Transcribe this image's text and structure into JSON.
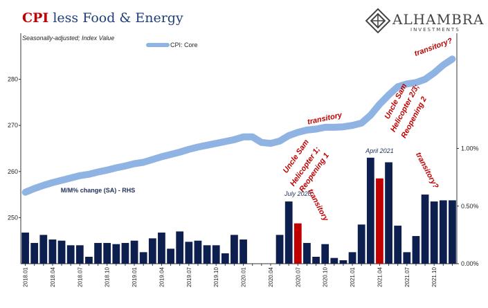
{
  "header": {
    "title_red": "CPI",
    "title_rest": " less Food & Energy",
    "subtitle": "Seasonally-adjusted; Index Value"
  },
  "logo": {
    "word": "ALHAMBRA",
    "sub": "INVESTMENTS",
    "icon": "diamond-knot-icon"
  },
  "chart_data": {
    "type": "bar+line",
    "x": [
      "2018.01",
      "2018.02",
      "2018.03",
      "2018.04",
      "2018.05",
      "2018.06",
      "2018.07",
      "2018.08",
      "2018.09",
      "2018.10",
      "2018.11",
      "2018.12",
      "2019.01",
      "2019.02",
      "2019.03",
      "2019.04",
      "2019.05",
      "2019.06",
      "2019.07",
      "2019.08",
      "2019.09",
      "2019.10",
      "2019.11",
      "2019.12",
      "2020.01",
      "2020.02",
      "2020.03",
      "2020.04",
      "2020.05",
      "2020.06",
      "2020.07",
      "2020.08",
      "2020.09",
      "2020.10",
      "2020.11",
      "2020.12",
      "2021.01",
      "2021.02",
      "2021.03",
      "2021.04",
      "2021.05",
      "2021.06",
      "2021.07",
      "2021.08",
      "2021.09",
      "2021.10",
      "2021.11",
      "2021.12"
    ],
    "x_tick_labels": [
      "2018.01",
      "2018.04",
      "2018.07",
      "2018.10",
      "2019.01",
      "2019.04",
      "2019.07",
      "2019.10",
      "2020.01",
      "2020.04",
      "2020.07",
      "2020.10",
      "2021.01",
      "2021.04",
      "2021.07",
      "2021.10"
    ],
    "line_series": {
      "name": "CPI: Core",
      "axis": "left",
      "color": "#8fb4e3",
      "values": [
        255.5,
        256.3,
        257.0,
        257.6,
        258.1,
        258.6,
        259.1,
        259.4,
        259.9,
        260.3,
        260.8,
        261.2,
        261.7,
        262.0,
        262.6,
        263.2,
        263.7,
        264.2,
        264.8,
        265.3,
        265.7,
        266.1,
        266.5,
        266.9,
        267.5,
        267.5,
        266.3,
        266.1,
        266.6,
        267.8,
        268.5,
        269.0,
        269.2,
        269.6,
        269.6,
        269.7,
        270.0,
        270.5,
        272.2,
        274.6,
        276.6,
        278.4,
        279.0,
        279.3,
        280.0,
        281.4,
        283.1,
        284.4
      ],
      "ylim": [
        240,
        290
      ],
      "ticks": [
        250,
        260,
        270,
        280
      ]
    },
    "bar_series": {
      "name": "M/M% change (SA) - RHS",
      "axis": "right",
      "color": "#0d1f4f",
      "highlight_color": "#c00000",
      "highlight_months": [
        "2020.07",
        "2021.04"
      ],
      "values": [
        0.27,
        0.18,
        0.25,
        0.21,
        0.2,
        0.16,
        0.16,
        0.06,
        0.18,
        0.18,
        0.17,
        0.18,
        0.2,
        0.1,
        0.22,
        0.27,
        0.13,
        0.28,
        0.19,
        0.2,
        0.16,
        0.16,
        0.09,
        0.25,
        0.21,
        0.0,
        0.0,
        0.0,
        0.25,
        0.54,
        0.35,
        0.18,
        0.06,
        0.17,
        0.05,
        0.03,
        0.1,
        0.34,
        0.92,
        0.74,
        0.88,
        0.33,
        0.1,
        0.24,
        0.6,
        0.54,
        0.55,
        0.55
      ],
      "ylim": [
        0,
        2.0
      ],
      "ticks": [
        "0.00%",
        "0.50%",
        "1.00%"
      ]
    },
    "annotations": [
      {
        "text": "transitory?",
        "style": "red",
        "x": "2021.10",
        "y": 286.5,
        "rotate": -20
      },
      {
        "text": "transitory",
        "style": "red",
        "x": "2020.10",
        "y": 271.0,
        "rotate": -12
      },
      {
        "text": "Uncle Sam",
        "style": "red",
        "x": "2021.06",
        "y": 275.0,
        "rotate": -62
      },
      {
        "text": "Helicopter 2/3;",
        "style": "red",
        "x": "2021.07",
        "y": 273.5,
        "rotate": -62
      },
      {
        "text": "Reopening 2",
        "style": "red",
        "x": "2021.08",
        "y": 271.5,
        "rotate": -62
      },
      {
        "text": "Uncle Sam",
        "style": "red",
        "x": "2020.07",
        "y": 263.0,
        "rotate": -55
      },
      {
        "text": "Helicopter 1;",
        "style": "red",
        "x": "2020.08",
        "y": 260.8,
        "rotate": -55
      },
      {
        "text": "Reopening 1",
        "style": "red",
        "x": "2020.09",
        "y": 259.5,
        "rotate": -55
      },
      {
        "text": "transitory?",
        "style": "red",
        "x": "2021.09",
        "y": 0.8,
        "axis": "right",
        "rotate": 62
      },
      {
        "text": "transitory",
        "style": "red",
        "x": "2020.09",
        "y": 0.5,
        "axis": "right",
        "rotate": 62
      },
      {
        "text": "July 2020",
        "style": "dark",
        "x": "2020.07",
        "y": 0.59,
        "axis": "right",
        "rotate": 0
      },
      {
        "text": "April 2021",
        "style": "dark",
        "x": "2021.04",
        "y": 0.96,
        "axis": "right",
        "rotate": 0
      },
      {
        "text": "M/M% change (SA) - RHS",
        "style": "mm",
        "x": "2018.09",
        "y": 0.62,
        "axis": "right",
        "rotate": 0
      }
    ],
    "legend": "top-left",
    "grid": false
  }
}
